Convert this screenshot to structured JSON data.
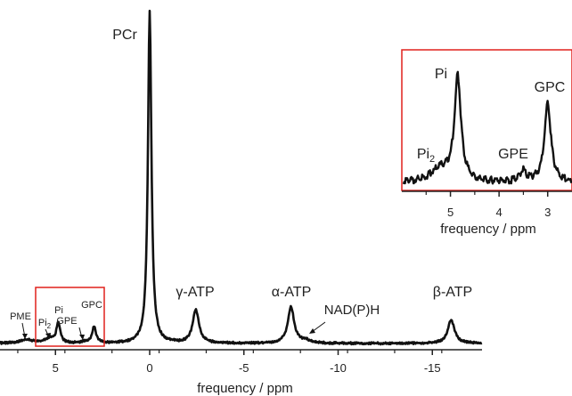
{
  "chart_data": [
    {
      "type": "line",
      "xlabel": "frequency / ppm",
      "ylabel": "",
      "xlim": [
        7.5,
        -17.8
      ],
      "x_reversed": true,
      "x_ticks": [
        5,
        0,
        -5,
        -10,
        -15
      ],
      "x_tick_labels": [
        "5",
        "0",
        "-5",
        "-10",
        "-15"
      ],
      "grid": false,
      "legend": "none",
      "series": [
        {
          "peaks": [
            {
              "label": "PME",
              "ppm": 6.5,
              "height": 0.01
            },
            {
              "label": "Pi2",
              "ppm": 5.3,
              "height": 0.015
            },
            {
              "label": "Pi",
              "ppm": 4.85,
              "height": 0.06
            },
            {
              "label": "GPE",
              "ppm": 3.4,
              "height": 0.005
            },
            {
              "label": "GPC",
              "ppm": 2.95,
              "height": 0.05
            },
            {
              "label": "PCr",
              "ppm": 0.0,
              "height": 1.0
            },
            {
              "label": "γ-ATP",
              "ppm": -2.45,
              "height": 0.1
            },
            {
              "label": "α-ATP",
              "ppm": -7.5,
              "height": 0.11
            },
            {
              "label": "NAD(P)H",
              "ppm": -8.3,
              "height": 0.008
            },
            {
              "label": "β-ATP",
              "ppm": -16.0,
              "height": 0.07
            }
          ]
        }
      ],
      "annotations": [
        "PCr",
        "γ-ATP",
        "α-ATP",
        "NAD(P)H",
        "β-ATP",
        "PME",
        "Pi",
        "Pi2",
        "GPE",
        "GPC"
      ]
    },
    {
      "type": "line",
      "xlabel": "frequency / ppm",
      "xlim": [
        6.0,
        2.5
      ],
      "x_reversed": true,
      "x_ticks": [
        5,
        4,
        3
      ],
      "x_tick_labels": [
        "5",
        "4",
        "3"
      ],
      "grid": false,
      "series": [
        {
          "peaks": [
            {
              "label": "Pi2",
              "ppm": 5.2,
              "height": 0.12
            },
            {
              "label": "Pi",
              "ppm": 4.85,
              "height": 0.95
            },
            {
              "label": "GPE",
              "ppm": 3.5,
              "height": 0.1
            },
            {
              "label": "GPC",
              "ppm": 3.0,
              "height": 0.72
            }
          ]
        }
      ],
      "annotations": [
        "Pi",
        "Pi2",
        "GPE",
        "GPC"
      ]
    }
  ],
  "labels": {
    "pcr": "PCr",
    "gamma_atp": "γ-ATP",
    "alpha_atp": "α-ATP",
    "nadph": "NAD(P)H",
    "beta_atp": "β-ATP",
    "pme": "PME",
    "pi": "Pi",
    "pi2_base": "Pi",
    "pi2_sub": "2",
    "gpe": "GPE",
    "gpc": "GPC"
  },
  "colors": {
    "spectrum": "#111111",
    "zoom_box": "#e0201c",
    "axis": "#222222"
  }
}
